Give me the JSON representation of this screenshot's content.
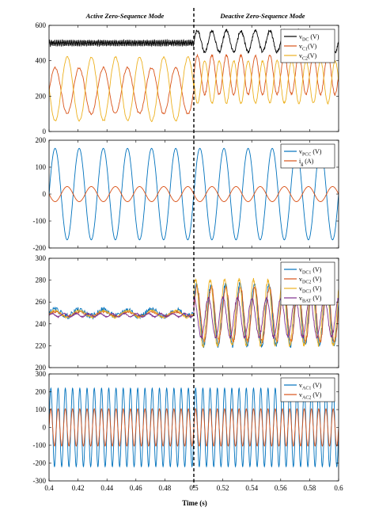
{
  "figure": {
    "xlabel": "Time (s)",
    "mode_labels": [
      "Active  Zero-Sequence Mode",
      "Deactive  Zero-Sequence Mode"
    ],
    "divider_x": 0.5
  },
  "chart_data": [
    {
      "type": "line",
      "xlim": [
        0.4,
        0.6
      ],
      "ylim": [
        0,
        600
      ],
      "yticks": [
        0,
        200,
        400,
        600
      ],
      "legend_position": "top-right",
      "series": [
        {
          "name": "v",
          "sub": "DC",
          "unit": " (V)",
          "color": "#000000",
          "segments": [
            {
              "x": [
                0.4,
                0.5
              ],
              "base": 500,
              "amp": 12,
              "freq": 800,
              "noise": 14
            },
            {
              "x": [
                0.5,
                0.6
              ],
              "base": 510,
              "amp": 60,
              "freq": 100,
              "noise": 18
            }
          ]
        },
        {
          "name": "v",
          "sub": "C1",
          "unit": "(V)",
          "color": "#d95319",
          "segments": [
            {
              "x": [
                0.4,
                0.5
              ],
              "base": 230,
              "amp": 130,
              "freq": 60,
              "noise": 12
            },
            {
              "x": [
                0.5,
                0.6
              ],
              "base": 320,
              "amp": 110,
              "freq": 100,
              "noise": 12
            }
          ]
        },
        {
          "name": "v",
          "sub": "C2",
          "unit": "(V)",
          "color": "#edb120",
          "segments": [
            {
              "x": [
                0.4,
                0.5
              ],
              "base": 240,
              "amp": 180,
              "freq": 60,
              "phase": 3.1,
              "noise": 10
            },
            {
              "x": [
                0.5,
                0.6
              ],
              "base": 280,
              "amp": 120,
              "freq": 100,
              "phase": 3.1,
              "noise": 10
            }
          ]
        }
      ]
    },
    {
      "type": "line",
      "xlim": [
        0.4,
        0.6
      ],
      "ylim": [
        -200,
        200
      ],
      "yticks": [
        -200,
        -100,
        0,
        100,
        200
      ],
      "legend_position": "top-right",
      "series": [
        {
          "name": "v",
          "sub": "PCC",
          "unit": " (V)",
          "color": "#0072bd",
          "segments": [
            {
              "x": [
                0.4,
                0.6
              ],
              "base": 0,
              "amp": 170,
              "freq": 60,
              "phase": 0,
              "noise": 0
            }
          ]
        },
        {
          "name": "i",
          "sub": "g",
          "unit": " (A)",
          "color": "#d95319",
          "segments": [
            {
              "x": [
                0.4,
                0.6
              ],
              "base": 0,
              "amp": 28,
              "freq": 60,
              "phase": 3.14,
              "noise": 0
            }
          ]
        }
      ]
    },
    {
      "type": "line",
      "xlim": [
        0.4,
        0.6
      ],
      "ylim": [
        200,
        300
      ],
      "yticks": [
        200,
        220,
        240,
        260,
        280,
        300
      ],
      "legend_position": "top-right",
      "series": [
        {
          "name": "v",
          "sub": "DC1",
          "unit": " (V)",
          "color": "#0072bd",
          "segments": [
            {
              "x": [
                0.4,
                0.5
              ],
              "base": 250,
              "amp": 3,
              "freq": 60,
              "noise": 5
            },
            {
              "x": [
                0.5,
                0.6
              ],
              "base": 248,
              "amp": 28,
              "freq": 100,
              "phase": 0.4,
              "noise": 5
            }
          ]
        },
        {
          "name": "v",
          "sub": "DC2",
          "unit": " (V)",
          "color": "#d95319",
          "segments": [
            {
              "x": [
                0.4,
                0.5
              ],
              "base": 249,
              "amp": 2,
              "freq": 60,
              "noise": 2
            },
            {
              "x": [
                0.5,
                0.6
              ],
              "base": 249,
              "amp": 25,
              "freq": 100,
              "phase": 0.2,
              "noise": 4
            }
          ]
        },
        {
          "name": "v",
          "sub": "DC3",
          "unit": " (V)",
          "color": "#edb120",
          "segments": [
            {
              "x": [
                0.4,
                0.5
              ],
              "base": 249,
              "amp": 3,
              "freq": 60,
              "noise": 2
            },
            {
              "x": [
                0.5,
                0.6
              ],
              "base": 250,
              "amp": 30,
              "freq": 100,
              "phase": 0.8,
              "noise": 4
            }
          ]
        },
        {
          "name": "v",
          "sub": "BAT",
          "unit": " (V)",
          "color": "#7e2f8e",
          "segments": [
            {
              "x": [
                0.4,
                0.5
              ],
              "base": 248,
              "amp": 1.5,
              "freq": 120,
              "noise": 1
            },
            {
              "x": [
                0.5,
                0.6
              ],
              "base": 246,
              "amp": 18,
              "freq": 100,
              "phase": 1.5,
              "noise": 3
            }
          ]
        }
      ]
    },
    {
      "type": "line",
      "xlim": [
        0.4,
        0.6
      ],
      "ylim": [
        -300,
        300
      ],
      "yticks": [
        -300,
        -200,
        -100,
        0,
        100,
        200,
        300
      ],
      "xticks": [
        0.4,
        0.42,
        0.44,
        0.46,
        0.48,
        0.5,
        0.52,
        0.54,
        0.56,
        0.58,
        0.6
      ],
      "legend_position": "top-right",
      "series": [
        {
          "name": "v",
          "sub": "AC1",
          "unit": " (V)",
          "color": "#0072bd",
          "segments": [
            {
              "x": [
                0.4,
                0.6
              ],
              "base": 0,
              "amp": 220,
              "freq": 200,
              "phase": 0,
              "noise": 0
            }
          ]
        },
        {
          "name": "v",
          "sub": "AC2",
          "unit": " (V)",
          "color": "#d95319",
          "segments": [
            {
              "x": [
                0.4,
                0.6
              ],
              "base": 0,
              "amp": 105,
              "freq": 200,
              "phase": 0,
              "noise": 0
            }
          ]
        }
      ]
    }
  ]
}
